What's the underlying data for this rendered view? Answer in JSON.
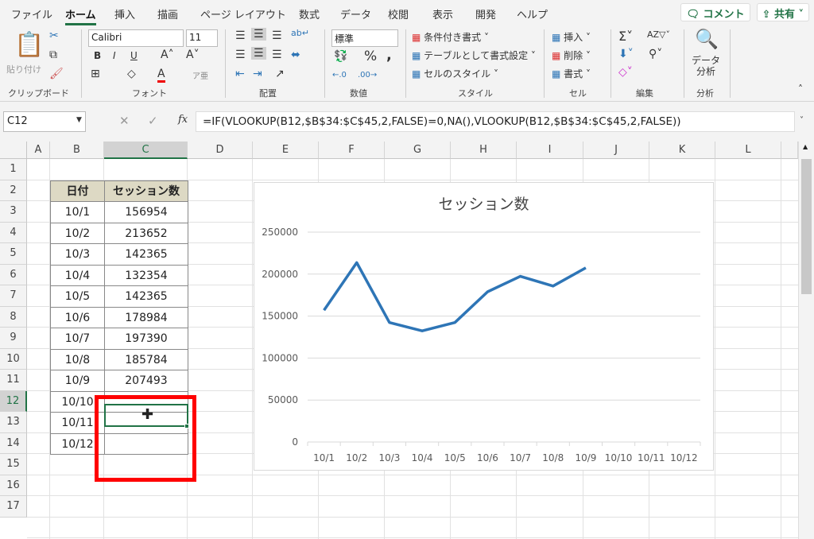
{
  "tabs": [
    "ファイル",
    "ホーム",
    "挿入",
    "描画",
    "ページ レイアウト",
    "数式",
    "データ",
    "校閲",
    "表示",
    "開発",
    "ヘルプ"
  ],
  "active_tab": "ホーム",
  "comment_btn": "コメント",
  "share_btn": "共有",
  "ribbon": {
    "clipboard": {
      "paste": "貼り付け",
      "label": "クリップボード"
    },
    "font": {
      "name": "Calibri",
      "size": "11",
      "bold": "B",
      "italic": "I",
      "underline": "U",
      "label": "フォント"
    },
    "alignment": {
      "label": "配置"
    },
    "number": {
      "format": "標準",
      "label": "数値"
    },
    "styles": {
      "conditional": "条件付き書式",
      "table": "テーブルとして書式設定",
      "cell_styles": "セルのスタイル",
      "label": "スタイル"
    },
    "cells": {
      "insert": "挿入",
      "delete": "削除",
      "format": "書式",
      "label": "セル"
    },
    "editing": {
      "label": "編集"
    },
    "analysis": {
      "button": "データ分析",
      "label": "分析"
    }
  },
  "formula_bar": {
    "name_box": "C12",
    "fx": "fx",
    "formula": "=IF(VLOOKUP(B12,$B$34:$C$45,2,FALSE)=0,NA(),VLOOKUP(B12,$B$34:$C$45,2,FALSE))"
  },
  "columns": [
    "A",
    "B",
    "C",
    "D",
    "E",
    "F",
    "G",
    "H",
    "I",
    "J",
    "K",
    "L"
  ],
  "rows": [
    "1",
    "2",
    "3",
    "4",
    "5",
    "6",
    "7",
    "8",
    "9",
    "10",
    "11",
    "12",
    "13",
    "14",
    "15",
    "16",
    "17"
  ],
  "selected_cell": "C12",
  "table": {
    "headers": [
      "日付",
      "セッション数"
    ],
    "rows": [
      [
        "10/1",
        "156954"
      ],
      [
        "10/2",
        "213652"
      ],
      [
        "10/3",
        "142365"
      ],
      [
        "10/4",
        "132354"
      ],
      [
        "10/5",
        "142365"
      ],
      [
        "10/6",
        "178984"
      ],
      [
        "10/7",
        "197390"
      ],
      [
        "10/8",
        "185784"
      ],
      [
        "10/9",
        "207493"
      ],
      [
        "10/10",
        ""
      ],
      [
        "10/11",
        ""
      ],
      [
        "10/12",
        ""
      ]
    ]
  },
  "colors": {
    "accent": "#217346",
    "series": "#2e75b6",
    "highlight": "#ff0000",
    "header_fill": "#ddd9c4"
  },
  "chart_data": {
    "type": "line",
    "title": "セッション数",
    "categories": [
      "10/1",
      "10/2",
      "10/3",
      "10/4",
      "10/5",
      "10/6",
      "10/7",
      "10/8",
      "10/9",
      "10/10",
      "10/11",
      "10/12"
    ],
    "values": [
      156954,
      213652,
      142365,
      132354,
      142365,
      178984,
      197390,
      185784,
      207493,
      null,
      null,
      null
    ],
    "yticks": [
      "0",
      "50000",
      "100000",
      "150000",
      "200000",
      "250000"
    ],
    "ylim": [
      0,
      250000
    ],
    "grid": true,
    "legend": "none"
  }
}
